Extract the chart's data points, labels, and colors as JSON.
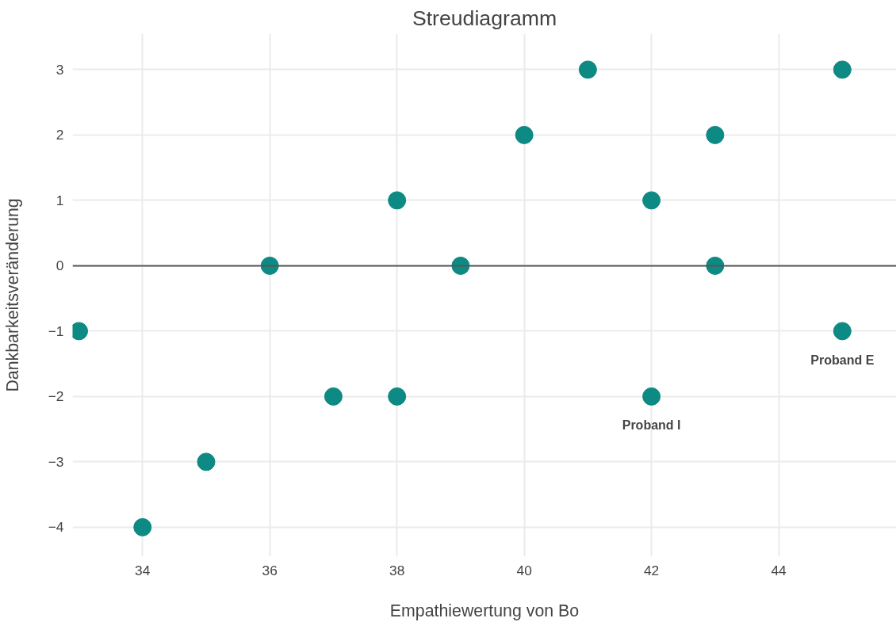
{
  "chart_data": {
    "type": "scatter",
    "title": "Streudiagramm",
    "xlabel": "Empathiewertung von Bo",
    "ylabel": "Dankbarkeitsveränderung",
    "x": [
      33,
      34,
      35,
      36,
      37,
      38,
      38,
      39,
      40,
      41,
      42,
      42,
      43,
      43,
      45,
      45
    ],
    "series": [
      {
        "color": "#0e8a85",
        "values": [
          -1,
          -4,
          -3,
          0,
          -2,
          1,
          -2,
          0,
          2,
          3,
          1,
          -2,
          2,
          0,
          3,
          -1
        ]
      }
    ],
    "xlim": [
      32.9,
      45.85
    ],
    "ylim": [
      -4.45,
      3.55
    ],
    "xticks": [
      34,
      36,
      38,
      40,
      42,
      44
    ],
    "yticks": [
      -4,
      -3,
      -2,
      -1,
      0,
      1,
      2,
      3
    ],
    "ref_lines": [
      {
        "axis": "y",
        "value": 0,
        "color": "#555555"
      }
    ],
    "annotations": [
      {
        "text": "Proband I",
        "x": 42,
        "y": -2
      },
      {
        "text": "Proband E",
        "x": 45,
        "y": -1
      }
    ],
    "grid": true,
    "marker": "circle"
  }
}
